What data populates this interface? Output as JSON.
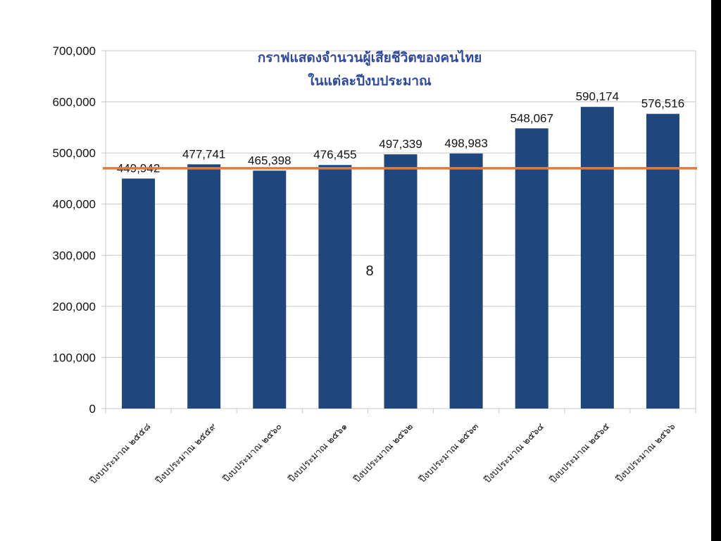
{
  "chart_data": {
    "type": "bar",
    "title_lines": [
      "กราฟแสดงจำนวนผู้เสียชีวิตของคนไทย",
      "ในแต่ละปีงบประมาณ"
    ],
    "categories": [
      "ปีงบประมาณ ๒๕๕๘",
      "ปีงบประมาณ ๒๕๕๙",
      "ปีงบประมาณ ๒๕๖๐",
      "ปีงบประมาณ ๒๕๖๑",
      "ปีงบประมาณ ๒๕๖๒",
      "ปีงบประมาณ ๒๕๖๓",
      "ปีงบประมาณ ๒๕๖๔",
      "ปีงบประมาณ ๒๕๖๕",
      "ปีงบประมาณ ๒๕๖๖"
    ],
    "values": [
      449942,
      477741,
      465398,
      476455,
      497339,
      498983,
      548067,
      590174,
      576516
    ],
    "data_labels": [
      "449,942",
      "477,741",
      "465,398",
      "476,455",
      "497,339",
      "498,983",
      "548,067",
      "590,174",
      "576,516"
    ],
    "ylim": [
      0,
      700000
    ],
    "yticks": [
      0,
      100000,
      200000,
      300000,
      400000,
      500000,
      600000,
      700000
    ],
    "ytick_labels": [
      "0",
      "100,000",
      "200,000",
      "300,000",
      "400,000",
      "500,000",
      "600,000",
      "700,000"
    ],
    "reference_line": 470000,
    "annotation": "8",
    "grid": true,
    "colors": {
      "bar": "#1f477d",
      "reference_line": "#e07b3c",
      "title": "#2e4a9e",
      "grid": "#c8c8c8"
    }
  }
}
